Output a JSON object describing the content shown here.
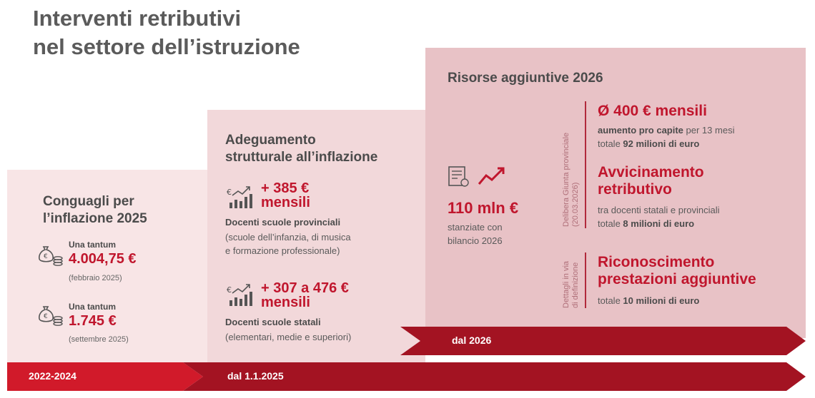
{
  "title": [
    "Interventi retributivi",
    "nel settore dell’istruzione"
  ],
  "colors": {
    "accent_red": "#c0162d",
    "band_dark_red": "#a01020",
    "panel1_bg": "#f8e5e6",
    "panel2_bg": "#f2d8da",
    "panel3_bg": "#e8c2c6"
  },
  "col1": {
    "heading": [
      "Conguagli per",
      "l’inflazione 2025"
    ],
    "items": [
      {
        "label": "Una tantum",
        "amount": "4.004,75 €",
        "date": "(febbraio 2025)",
        "icon": "money-bag-coins-icon"
      },
      {
        "label": "Una tantum",
        "amount": "1.745 €",
        "date": "(settembre 2025)",
        "icon": "money-bag-coins-icon"
      }
    ]
  },
  "col2": {
    "heading": [
      "Adeguamento",
      "strutturale all’inflazione"
    ],
    "items": [
      {
        "amount_line1": "+ 385 €",
        "amount_line2": "mensili",
        "title": "Docenti scuole provinciali",
        "desc": [
          "(scuole dell’infanzia, di musica",
          "e formazione professionale)"
        ],
        "icon": "rising-bar-chart-icon"
      },
      {
        "amount_line1": "+ 307 a 476 €",
        "amount_line2": "mensili",
        "title": "Docenti scuole statali",
        "desc": [
          "(elementari, medie e superiori)"
        ],
        "icon": "rising-bar-chart-icon"
      }
    ]
  },
  "col3": {
    "heading": "Risorse aggiuntive 2026",
    "summary": {
      "amount": "110 mln €",
      "desc": [
        "stanziate con",
        "bilancio 2026"
      ],
      "icons": [
        "document-icon",
        "trend-up-arrow-icon"
      ]
    },
    "vertical_label_1": [
      "Delibera Giunta provinciale",
      "(20.03.2026)"
    ],
    "vertical_label_2": [
      "Dettagli in via",
      "di definizione"
    ],
    "entries": [
      {
        "title": [
          "Ø 400 € mensili"
        ],
        "line1_bold": "aumento pro capite",
        "line1_rest": " per 13 mesi",
        "line2_pre": "totale ",
        "line2_bold": "92 milioni di euro"
      },
      {
        "title": [
          "Avvicinamento",
          "retributivo"
        ],
        "line1_rest": "tra docenti statali e provinciali",
        "line2_pre": "totale ",
        "line2_bold": "8 milioni di euro"
      },
      {
        "title": [
          "Riconoscimento",
          "prestazioni aggiuntive"
        ],
        "line2_pre": "totale ",
        "line2_bold": "10 milioni di euro"
      }
    ]
  },
  "timeline": {
    "seg1": "2022-2024",
    "seg2": "dal 1.1.2025",
    "seg3": "dal 2026"
  }
}
